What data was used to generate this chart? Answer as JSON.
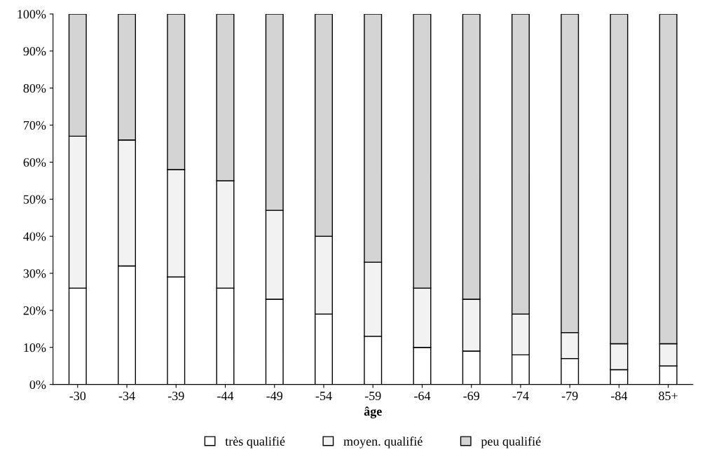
{
  "chart_data": {
    "type": "bar",
    "stacked": true,
    "xlabel": "âge",
    "categories": [
      "-30",
      "-34",
      "-39",
      "-44",
      "-49",
      "-54",
      "-59",
      "-64",
      "-69",
      "-74",
      "-79",
      "-84",
      "85+"
    ],
    "series": [
      {
        "name": "très qualifié",
        "color": "#ffffff",
        "values": [
          26,
          32,
          29,
          26,
          23,
          19,
          13,
          10,
          9,
          8,
          7,
          4,
          5
        ]
      },
      {
        "name": "moyen. qualifié",
        "color": "#f2f2f2",
        "values": [
          41,
          34,
          29,
          29,
          24,
          21,
          20,
          16,
          14,
          11,
          7,
          7,
          6
        ]
      },
      {
        "name": "peu qualifié",
        "color": "#d4d4d4",
        "values": [
          33,
          34,
          42,
          45,
          53,
          60,
          67,
          74,
          77,
          81,
          86,
          89,
          89
        ]
      }
    ],
    "ylim": [
      0,
      100
    ],
    "yticks": [
      {
        "value": 0,
        "label": "0%"
      },
      {
        "value": 10,
        "label": "10%"
      },
      {
        "value": 20,
        "label": "20%"
      },
      {
        "value": 30,
        "label": "30%"
      },
      {
        "value": 40,
        "label": "40%"
      },
      {
        "value": 50,
        "label": "50%"
      },
      {
        "value": 60,
        "label": "60%"
      },
      {
        "value": 70,
        "label": "70%"
      },
      {
        "value": 80,
        "label": "80%"
      },
      {
        "value": 90,
        "label": "90%"
      },
      {
        "value": 100,
        "label": "100%"
      }
    ],
    "grid": false,
    "legend": "bottom"
  }
}
